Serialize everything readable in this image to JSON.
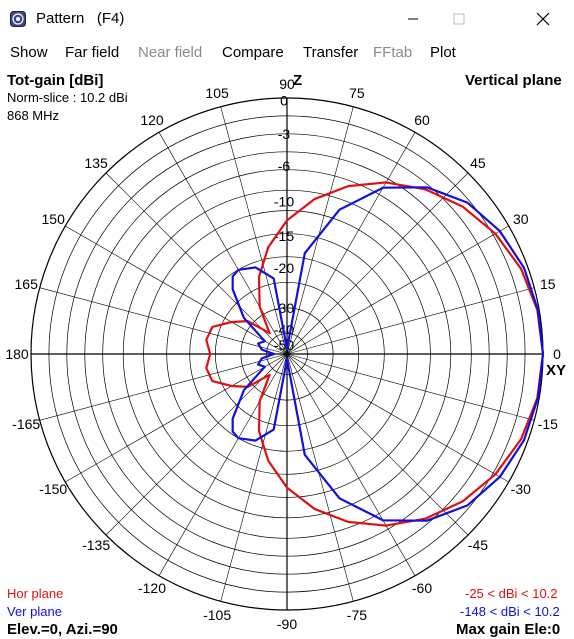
{
  "window": {
    "title": "Pattern   (F4)",
    "icon": "pattern-app-icon"
  },
  "menu": [
    {
      "label": "Show",
      "enabled": true
    },
    {
      "label": "Far field",
      "enabled": true
    },
    {
      "label": "Near field",
      "enabled": false
    },
    {
      "label": "Compare",
      "enabled": true
    },
    {
      "label": "Transfer",
      "enabled": true
    },
    {
      "label": "FFtab",
      "enabled": false
    },
    {
      "label": "Plot",
      "enabled": true
    }
  ],
  "plot": {
    "header_left": "Tot-gain [dBi]",
    "norm_slice": "Norm-slice : 10.2 dBi",
    "frequency": "868 MHz",
    "header_right": "Vertical plane",
    "z_axis_label": "Z",
    "xy_axis_label": "XY",
    "legend_hor": "Hor plane",
    "legend_ver": "Ver plane",
    "range_hor": "-25 < dBi < 10.2",
    "range_ver": "-148 < dBi < 10.2",
    "elev_azi": "Elev.=0, Azi.=90",
    "max_gain": "Max gain Ele:0",
    "colors": {
      "hor": "#e01010",
      "ver": "#1010e0",
      "grid": "#000000"
    }
  },
  "chart_data": {
    "type": "polar",
    "angle_labels": [
      "0",
      "15",
      "30",
      "45",
      "60",
      "75",
      "90",
      "105",
      "120",
      "135",
      "150",
      "165",
      "180",
      "-165",
      "-150",
      "-135",
      "-120",
      "-105",
      "-90",
      "-75",
      "-60",
      "-45",
      "-30",
      "-15"
    ],
    "radial_labels": [
      "0",
      "-3",
      "-6",
      "-10",
      "-15",
      "-20",
      "-30",
      "-40",
      "-50"
    ],
    "series": [
      {
        "name": "Hor plane",
        "angles_deg": [
          0,
          10,
          20,
          30,
          40,
          50,
          60,
          70,
          80,
          90,
          100,
          110,
          120,
          130,
          140,
          150,
          160,
          170,
          180,
          190,
          200,
          210,
          220,
          230,
          240,
          250,
          260,
          270,
          280,
          290,
          300,
          310,
          320,
          330,
          340,
          350
        ],
        "values": [
          1.0,
          0.993,
          0.973,
          0.94,
          0.896,
          0.84,
          0.774,
          0.698,
          0.614,
          0.522,
          0.423,
          0.32,
          0.213,
          0.106,
          0.2,
          0.25,
          0.31,
          0.32,
          0.3,
          0.32,
          0.31,
          0.25,
          0.2,
          0.106,
          0.213,
          0.32,
          0.423,
          0.522,
          0.614,
          0.698,
          0.774,
          0.84,
          0.896,
          0.94,
          0.973,
          0.993
        ]
      },
      {
        "name": "Ver plane",
        "angles_deg": [
          0,
          10,
          20,
          30,
          40,
          50,
          60,
          70,
          80,
          90,
          100,
          110,
          120,
          125,
          130,
          140,
          150,
          160,
          170,
          180,
          190,
          200,
          210,
          220,
          230,
          235,
          240,
          250,
          260,
          270,
          280,
          290,
          300,
          310,
          320,
          330,
          340,
          350
        ],
        "values": [
          1.0,
          0.995,
          0.985,
          0.96,
          0.92,
          0.85,
          0.75,
          0.6,
          0.4,
          0.02,
          0.3,
          0.36,
          0.38,
          0.37,
          0.33,
          0.22,
          0.1,
          0.12,
          0.1,
          0.05,
          0.1,
          0.12,
          0.1,
          0.22,
          0.33,
          0.37,
          0.38,
          0.36,
          0.3,
          0.02,
          0.4,
          0.6,
          0.75,
          0.85,
          0.92,
          0.96,
          0.985,
          0.995
        ]
      }
    ]
  }
}
